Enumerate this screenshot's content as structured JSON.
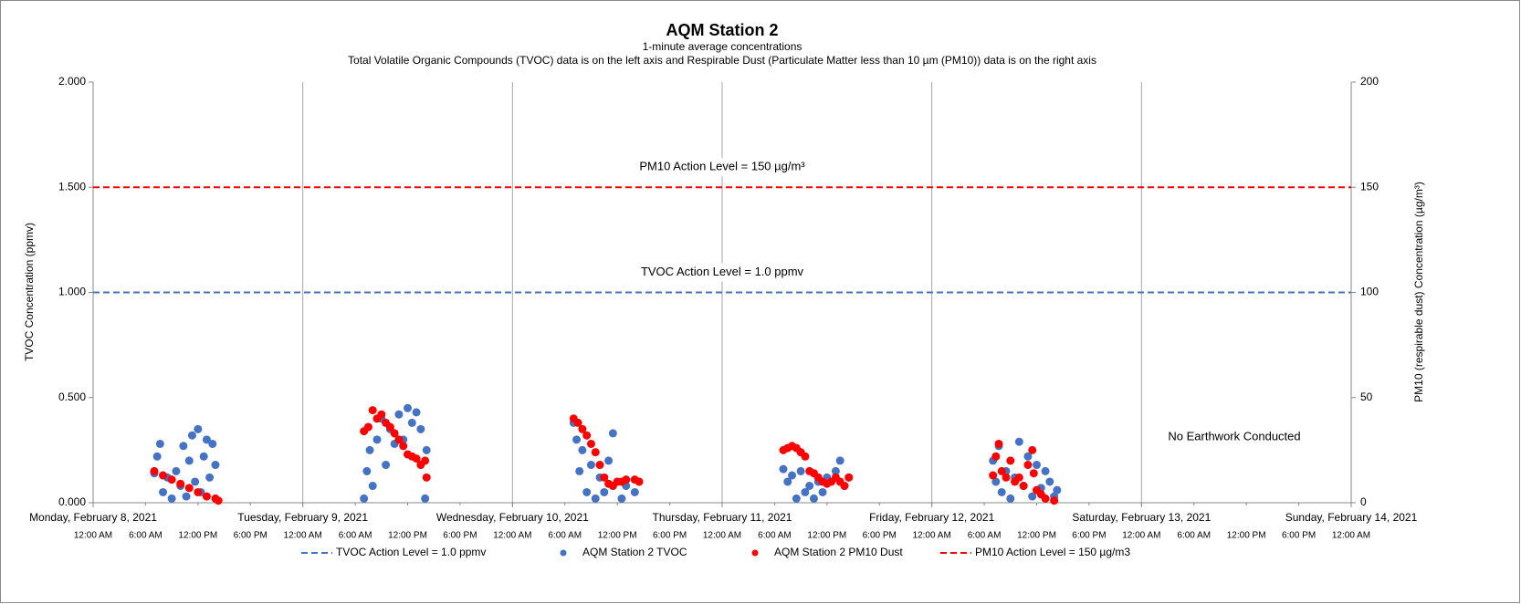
{
  "chart_data": {
    "type": "scatter",
    "title": "AQM Station 2",
    "subtitle": "1-minute average concentrations",
    "subtitle2": "Total Volatile Organic Compounds (TVOC) data is on the left axis and Respirable Dust (Particulate Matter less than 10 µm (PM10)) data is on the right axis",
    "y_label": "TVOC Concentration (ppmv)",
    "y2_label": "PM10 (respirable dust) Concentration (µg/m³)",
    "xlim": [
      "2021-02-08T00:00",
      "2021-02-14T00:00"
    ],
    "xticks": [
      {
        "value": "2021-02-08T00:00",
        "label": "Monday, February 8, 2021"
      },
      {
        "value": "2021-02-09T00:00",
        "label": "Tuesday, February 9, 2021"
      },
      {
        "value": "2021-02-10T00:00",
        "label": "Wednesday, February 10, 2021"
      },
      {
        "value": "2021-02-11T00:00",
        "label": "Thursday, February 11, 2021"
      },
      {
        "value": "2021-02-12T00:00",
        "label": "Friday, February 12, 2021"
      },
      {
        "value": "2021-02-13T00:00",
        "label": "Saturday, February 13, 2021"
      },
      {
        "value": "2021-02-14T00:00",
        "label": "Sunday, February 14, 2021"
      }
    ],
    "xticks_minor": [
      {
        "value": "2021-02-08T00:00",
        "label": "12:00 AM"
      },
      {
        "value": "2021-02-08T06:00",
        "label": "6:00 AM"
      },
      {
        "value": "2021-02-08T12:00",
        "label": "12:00 PM"
      },
      {
        "value": "2021-02-08T18:00",
        "label": "6:00 PM"
      },
      {
        "value": "2021-02-09T00:00",
        "label": "12:00 AM"
      },
      {
        "value": "2021-02-09T06:00",
        "label": "6:00 AM"
      },
      {
        "value": "2021-02-09T12:00",
        "label": "12:00 PM"
      },
      {
        "value": "2021-02-09T18:00",
        "label": "6:00 PM"
      },
      {
        "value": "2021-02-10T00:00",
        "label": "12:00 AM"
      },
      {
        "value": "2021-02-10T06:00",
        "label": "6:00 AM"
      },
      {
        "value": "2021-02-10T12:00",
        "label": "12:00 PM"
      },
      {
        "value": "2021-02-10T18:00",
        "label": "6:00 PM"
      },
      {
        "value": "2021-02-11T00:00",
        "label": "12:00 AM"
      },
      {
        "value": "2021-02-11T06:00",
        "label": "6:00 AM"
      },
      {
        "value": "2021-02-11T12:00",
        "label": "12:00 PM"
      },
      {
        "value": "2021-02-11T18:00",
        "label": "6:00 PM"
      },
      {
        "value": "2021-02-12T00:00",
        "label": "12:00 AM"
      },
      {
        "value": "2021-02-12T06:00",
        "label": "6:00 AM"
      },
      {
        "value": "2021-02-12T12:00",
        "label": "12:00 PM"
      },
      {
        "value": "2021-02-12T18:00",
        "label": "6:00 PM"
      },
      {
        "value": "2021-02-13T00:00",
        "label": "12:00 AM"
      },
      {
        "value": "2021-02-13T06:00",
        "label": "6:00 AM"
      },
      {
        "value": "2021-02-13T12:00",
        "label": "12:00 PM"
      },
      {
        "value": "2021-02-13T18:00",
        "label": "6:00 PM"
      },
      {
        "value": "2021-02-14T00:00",
        "label": "12:00 AM"
      }
    ],
    "ylim": [
      0,
      2
    ],
    "yticks": [
      {
        "value": 0,
        "label": "0.000"
      },
      {
        "value": 0.5,
        "label": "0.500"
      },
      {
        "value": 1,
        "label": "1.000"
      },
      {
        "value": 1.5,
        "label": "1.500"
      },
      {
        "value": 2,
        "label": "2.000"
      }
    ],
    "y2lim": [
      0,
      200
    ],
    "y2ticks": [
      0,
      50,
      100,
      150,
      200
    ],
    "grid": true,
    "series": [
      {
        "name": "TVOC Action Level = 1.0 ppmv",
        "color": "#4472c4",
        "value": 1.0,
        "axis": "y"
      },
      {
        "name": "AQM Station 2 TVOC",
        "color": "#4472c4",
        "axis": "y",
        "x": [
          "2021-02-08T07:00",
          "2021-02-08T07:20",
          "2021-02-08T07:40",
          "2021-02-08T08:00",
          "2021-02-08T08:30",
          "2021-02-08T09:00",
          "2021-02-08T09:30",
          "2021-02-08T10:00",
          "2021-02-08T10:20",
          "2021-02-08T10:40",
          "2021-02-08T11:00",
          "2021-02-08T11:20",
          "2021-02-08T11:40",
          "2021-02-08T12:00",
          "2021-02-08T12:20",
          "2021-02-08T12:40",
          "2021-02-08T13:00",
          "2021-02-08T13:20",
          "2021-02-08T13:40",
          "2021-02-08T14:00",
          "2021-02-09T07:00",
          "2021-02-09T07:20",
          "2021-02-09T07:40",
          "2021-02-09T08:00",
          "2021-02-09T08:30",
          "2021-02-09T09:00",
          "2021-02-09T09:30",
          "2021-02-09T10:00",
          "2021-02-09T10:30",
          "2021-02-09T11:00",
          "2021-02-09T11:30",
          "2021-02-09T12:00",
          "2021-02-09T12:30",
          "2021-02-09T13:00",
          "2021-02-09T13:30",
          "2021-02-09T14:00",
          "2021-02-09T14:10",
          "2021-02-10T07:00",
          "2021-02-10T07:20",
          "2021-02-10T07:40",
          "2021-02-10T08:00",
          "2021-02-10T08:30",
          "2021-02-10T09:00",
          "2021-02-10T09:30",
          "2021-02-10T10:00",
          "2021-02-10T10:30",
          "2021-02-10T11:00",
          "2021-02-10T11:30",
          "2021-02-10T12:00",
          "2021-02-10T12:30",
          "2021-02-10T13:00",
          "2021-02-10T14:00",
          "2021-02-11T07:00",
          "2021-02-11T07:30",
          "2021-02-11T08:00",
          "2021-02-11T08:30",
          "2021-02-11T09:00",
          "2021-02-11T09:30",
          "2021-02-11T10:00",
          "2021-02-11T10:30",
          "2021-02-11T11:00",
          "2021-02-11T11:30",
          "2021-02-11T12:00",
          "2021-02-11T13:00",
          "2021-02-11T13:30",
          "2021-02-11T14:00",
          "2021-02-11T14:30",
          "2021-02-12T07:00",
          "2021-02-12T07:20",
          "2021-02-12T07:40",
          "2021-02-12T08:00",
          "2021-02-12T08:30",
          "2021-02-12T09:00",
          "2021-02-12T09:30",
          "2021-02-12T10:00",
          "2021-02-12T10:30",
          "2021-02-12T11:00",
          "2021-02-12T11:30",
          "2021-02-12T12:00",
          "2021-02-12T12:30",
          "2021-02-12T13:00",
          "2021-02-12T13:30",
          "2021-02-12T14:00",
          "2021-02-12T14:20"
        ],
        "values": [
          0.14,
          0.22,
          0.28,
          0.05,
          0.12,
          0.02,
          0.15,
          0.08,
          0.27,
          0.03,
          0.2,
          0.32,
          0.1,
          0.35,
          0.05,
          0.22,
          0.3,
          0.12,
          0.28,
          0.18,
          0.02,
          0.15,
          0.25,
          0.08,
          0.3,
          0.4,
          0.18,
          0.35,
          0.28,
          0.42,
          0.3,
          0.45,
          0.38,
          0.43,
          0.35,
          0.02,
          0.25,
          0.38,
          0.3,
          0.15,
          0.25,
          0.05,
          0.18,
          0.02,
          0.12,
          0.05,
          0.2,
          0.33,
          0.1,
          0.02,
          0.08,
          0.05,
          0.16,
          0.1,
          0.13,
          0.02,
          0.15,
          0.05,
          0.08,
          0.02,
          0.1,
          0.05,
          0.12,
          0.15,
          0.2,
          0.08,
          0.12,
          0.2,
          0.1,
          0.27,
          0.05,
          0.15,
          0.02,
          0.12,
          0.29,
          0.08,
          0.22,
          0.03,
          0.18,
          0.07,
          0.15,
          0.1,
          0.03,
          0.06
        ]
      },
      {
        "name": "AQM Station 2 PM10 Dust",
        "color": "#ff0000",
        "axis": "y2",
        "x": [
          "2021-02-08T07:00",
          "2021-02-08T08:00",
          "2021-02-08T09:00",
          "2021-02-08T10:00",
          "2021-02-08T11:00",
          "2021-02-08T12:00",
          "2021-02-08T13:00",
          "2021-02-08T14:00",
          "2021-02-08T14:20",
          "2021-02-09T07:00",
          "2021-02-09T07:30",
          "2021-02-09T08:00",
          "2021-02-09T08:30",
          "2021-02-09T09:00",
          "2021-02-09T09:30",
          "2021-02-09T10:00",
          "2021-02-09T10:30",
          "2021-02-09T11:00",
          "2021-02-09T11:30",
          "2021-02-09T12:00",
          "2021-02-09T12:30",
          "2021-02-09T13:00",
          "2021-02-09T13:30",
          "2021-02-09T14:00",
          "2021-02-09T14:10",
          "2021-02-10T07:00",
          "2021-02-10T07:30",
          "2021-02-10T08:00",
          "2021-02-10T08:30",
          "2021-02-10T09:00",
          "2021-02-10T09:30",
          "2021-02-10T10:00",
          "2021-02-10T10:30",
          "2021-02-10T11:00",
          "2021-02-10T11:30",
          "2021-02-10T12:00",
          "2021-02-10T12:30",
          "2021-02-10T13:00",
          "2021-02-10T14:00",
          "2021-02-10T14:30",
          "2021-02-11T07:00",
          "2021-02-11T07:30",
          "2021-02-11T08:00",
          "2021-02-11T08:30",
          "2021-02-11T09:00",
          "2021-02-11T09:30",
          "2021-02-11T10:00",
          "2021-02-11T10:30",
          "2021-02-11T11:00",
          "2021-02-11T11:30",
          "2021-02-11T12:00",
          "2021-02-11T12:30",
          "2021-02-11T13:00",
          "2021-02-11T13:30",
          "2021-02-11T14:00",
          "2021-02-11T14:30",
          "2021-02-12T07:00",
          "2021-02-12T07:20",
          "2021-02-12T07:40",
          "2021-02-12T08:00",
          "2021-02-12T08:30",
          "2021-02-12T09:00",
          "2021-02-12T09:30",
          "2021-02-12T10:00",
          "2021-02-12T10:30",
          "2021-02-12T11:00",
          "2021-02-12T11:30",
          "2021-02-12T11:40",
          "2021-02-12T12:00",
          "2021-02-12T12:30",
          "2021-02-12T13:00",
          "2021-02-12T14:00"
        ],
        "values": [
          15,
          13,
          11,
          9,
          7,
          5,
          3,
          2,
          1,
          34,
          36,
          44,
          40,
          42,
          38,
          36,
          33,
          30,
          27,
          23,
          22,
          21,
          18,
          20,
          12,
          40,
          38,
          35,
          32,
          28,
          24,
          18,
          12,
          9,
          8,
          10,
          10,
          11,
          11,
          10,
          25,
          26,
          27,
          26,
          24,
          22,
          15,
          14,
          12,
          10,
          9,
          10,
          12,
          10,
          8,
          12,
          13,
          22,
          28,
          15,
          12,
          20,
          10,
          12,
          8,
          18,
          25,
          14,
          6,
          4,
          2,
          1
        ]
      },
      {
        "name": "PM10 Action Level = 150 µg/m3",
        "color": "#ff0000",
        "value": 150,
        "axis": "y2"
      }
    ],
    "annotations": [
      "PM10 Action Level = 150 µg/m³",
      "TVOC Action Level = 1.0 ppmv",
      "No  Earthwork Conducted"
    ]
  }
}
